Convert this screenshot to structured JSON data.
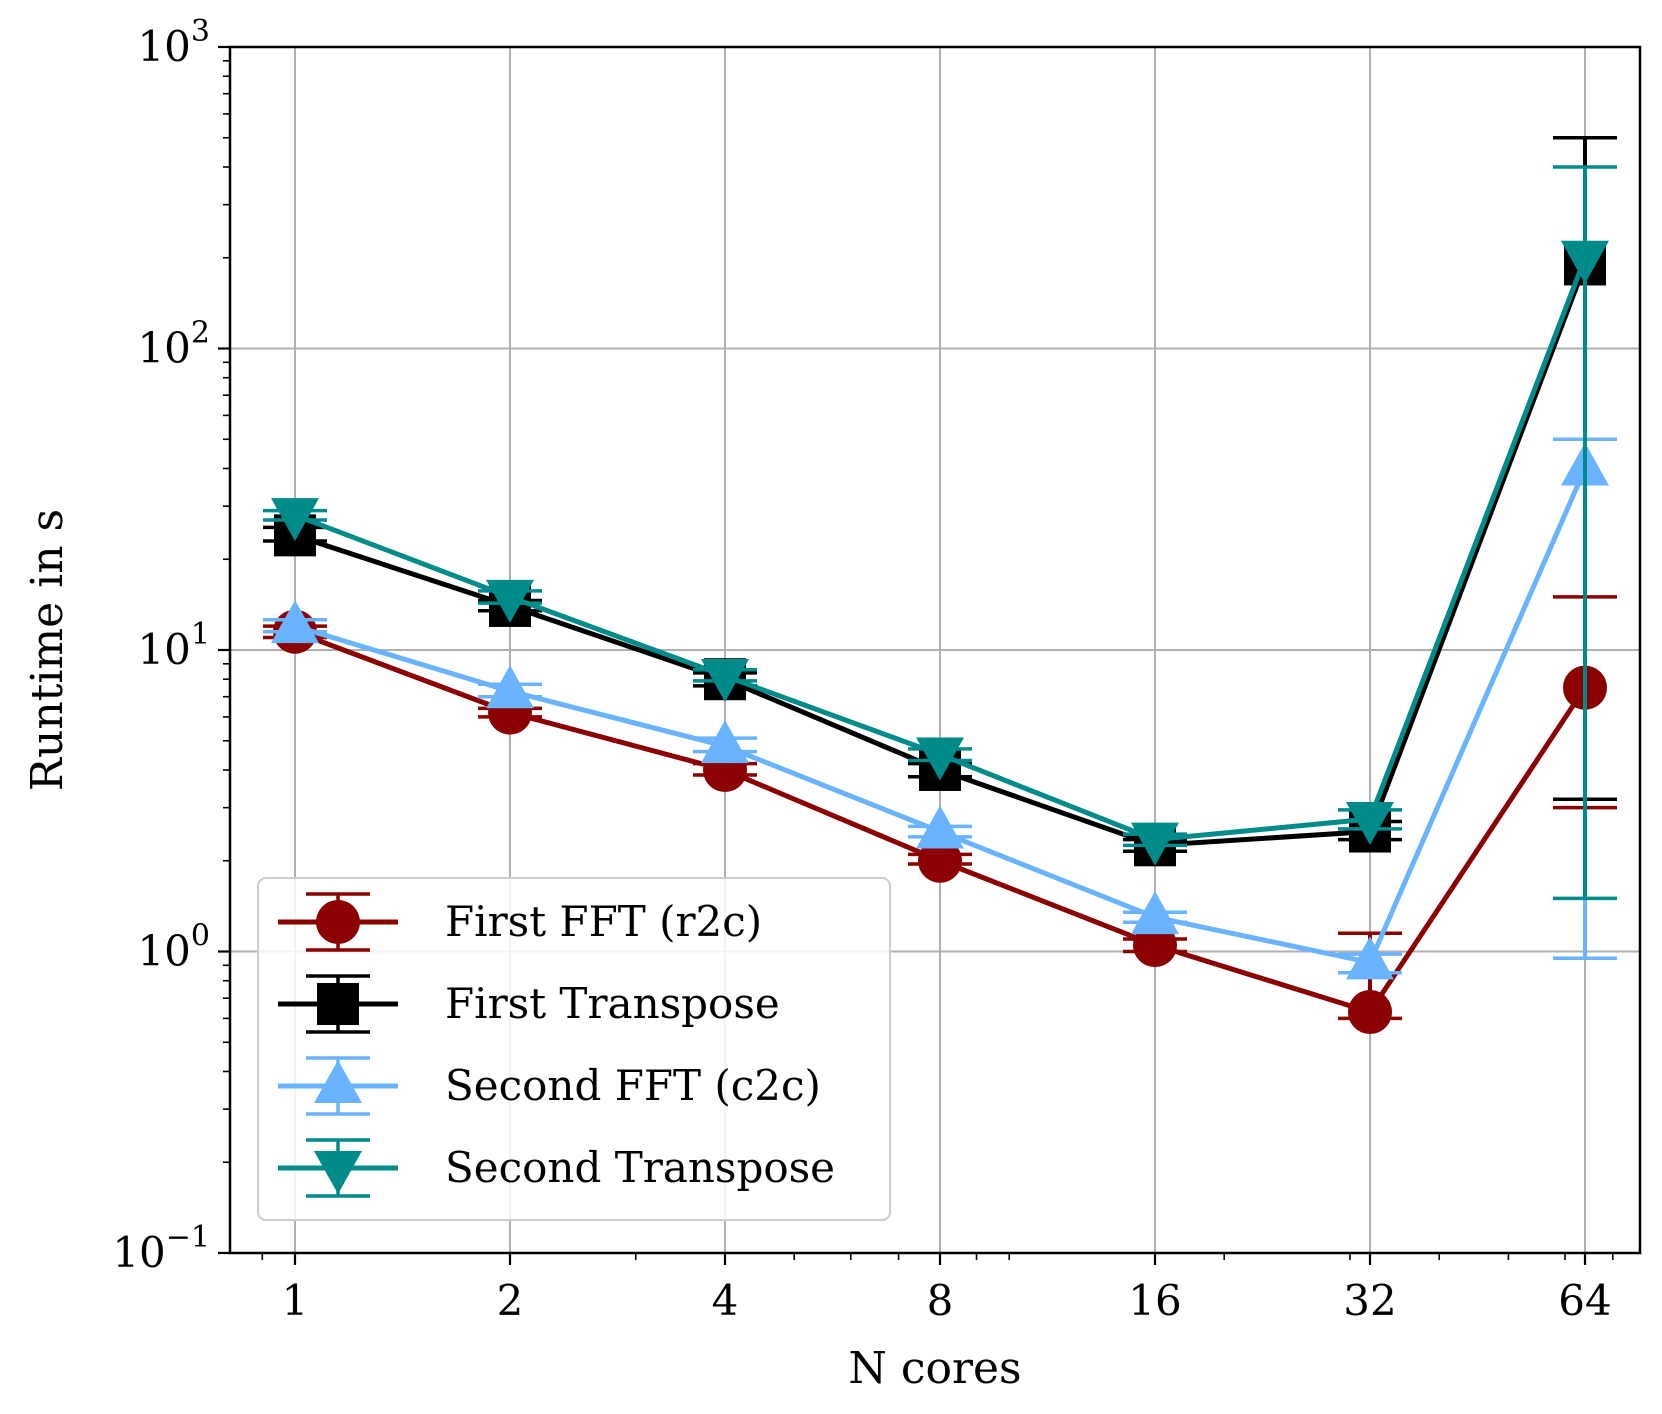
{
  "chart_data": {
    "type": "line",
    "xlabel": "N cores",
    "ylabel": "Runtime in s",
    "x": [
      1,
      2,
      4,
      8,
      16,
      32,
      64
    ],
    "x_tick_labels": [
      "1",
      "2",
      "4",
      "8",
      "16",
      "32",
      "64"
    ],
    "x_scale": "log2",
    "y_scale": "log10",
    "ylim": [
      0.1,
      1000
    ],
    "y_ticks": [
      {
        "base": "10",
        "exp": "−1"
      },
      {
        "base": "10",
        "exp": "0"
      },
      {
        "base": "10",
        "exp": "1"
      },
      {
        "base": "10",
        "exp": "2"
      },
      {
        "base": "10",
        "exp": "3"
      }
    ],
    "grid": true,
    "legend_position": "lower-left",
    "series": [
      {
        "name": "First FFT (r2c)",
        "color": "#8b0000",
        "marker": "circle",
        "values": [
          11.5,
          6.2,
          4.0,
          2.0,
          1.05,
          0.63,
          7.5
        ],
        "err_low": [
          11.0,
          6.0,
          3.85,
          1.95,
          1.0,
          0.6,
          3.0
        ],
        "err_high": [
          12.0,
          6.4,
          4.2,
          2.1,
          1.1,
          1.15,
          15.0
        ]
      },
      {
        "name": "First Transpose",
        "color": "#000000",
        "marker": "square",
        "values": [
          24.0,
          14.0,
          8.0,
          4.0,
          2.25,
          2.5,
          190.0
        ],
        "err_low": [
          23.0,
          13.5,
          7.6,
          3.8,
          2.15,
          2.35,
          3.2
        ],
        "err_high": [
          25.5,
          14.6,
          8.4,
          4.2,
          2.35,
          2.7,
          500.0
        ]
      },
      {
        "name": "Second FFT (c2c)",
        "color": "#6ab4ff",
        "marker": "triangle-up",
        "values": [
          12.0,
          7.3,
          4.8,
          2.5,
          1.3,
          0.92,
          40.0
        ],
        "err_low": [
          11.5,
          7.0,
          4.6,
          2.4,
          1.25,
          0.85,
          0.95
        ],
        "err_high": [
          12.6,
          7.7,
          5.1,
          2.6,
          1.35,
          0.98,
          50.0
        ]
      },
      {
        "name": "Second Transpose",
        "color": "#008b8b",
        "marker": "triangle-down",
        "values": [
          28.0,
          15.0,
          8.2,
          4.5,
          2.35,
          2.75,
          200.0
        ],
        "err_low": [
          27.0,
          14.3,
          7.9,
          4.3,
          2.25,
          2.55,
          1.5
        ],
        "err_high": [
          29.0,
          15.7,
          8.6,
          4.7,
          2.45,
          2.95,
          400.0
        ]
      }
    ]
  }
}
